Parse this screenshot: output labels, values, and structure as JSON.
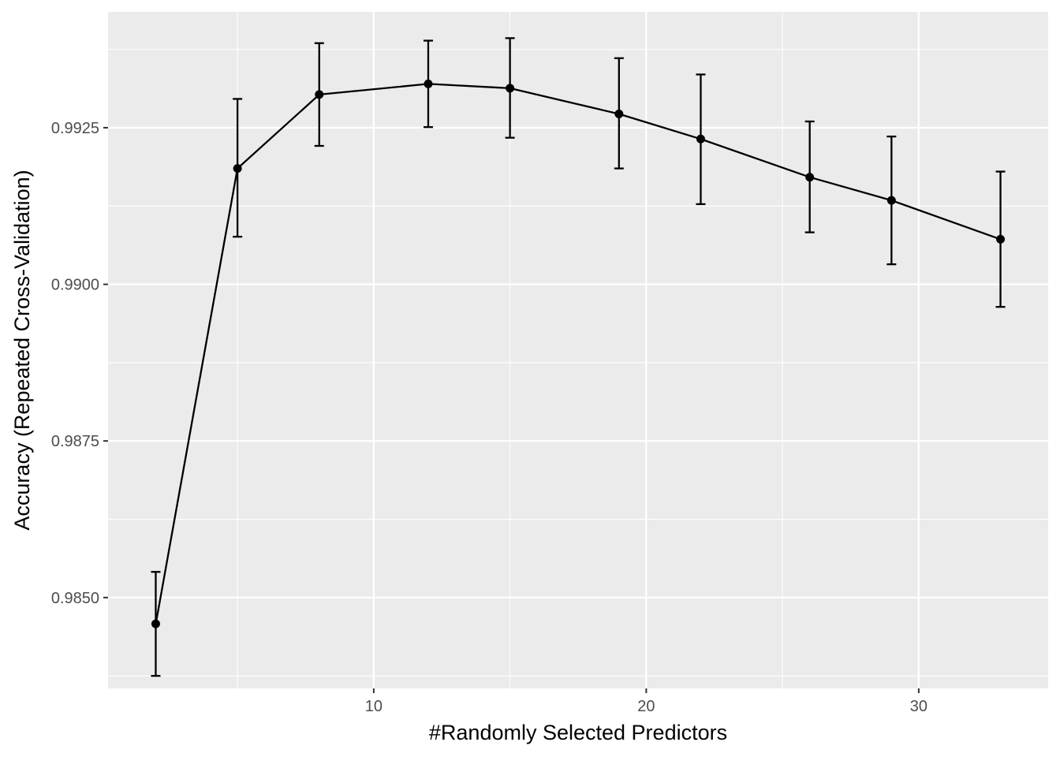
{
  "chart_data": {
    "type": "line",
    "title": "",
    "xlabel": "#Randomly Selected Predictors",
    "ylabel": "Accuracy (Repeated Cross-Validation)",
    "xlim": [
      0.25,
      34.75
    ],
    "ylim": [
      0.98355,
      0.99435
    ],
    "x_ticks": [
      10,
      20,
      30
    ],
    "x_tick_labels": [
      "10",
      "20",
      "30"
    ],
    "y_ticks": [
      0.985,
      0.9875,
      0.99,
      0.9925
    ],
    "y_tick_labels": [
      "0.9850",
      "0.9875",
      "0.9900",
      "0.9925"
    ],
    "grid": true,
    "series": [
      {
        "x": [
          2,
          5,
          8,
          12,
          15,
          19,
          22,
          26,
          29,
          33
        ],
        "y": [
          0.98458,
          0.99185,
          0.99303,
          0.9932,
          0.99313,
          0.99272,
          0.99232,
          0.99171,
          0.99134,
          0.99072
        ],
        "y_lower": [
          0.98375,
          0.99076,
          0.99221,
          0.99251,
          0.99234,
          0.99185,
          0.99128,
          0.99083,
          0.99032,
          0.98964
        ],
        "y_upper": [
          0.98541,
          0.99296,
          0.99385,
          0.99389,
          0.99393,
          0.99361,
          0.99335,
          0.9926,
          0.99236,
          0.9918
        ]
      }
    ],
    "colors": {
      "panel": "#ebebeb",
      "grid": "#ffffff",
      "line": "#000000",
      "tick_text": "#4d4d4d"
    }
  }
}
